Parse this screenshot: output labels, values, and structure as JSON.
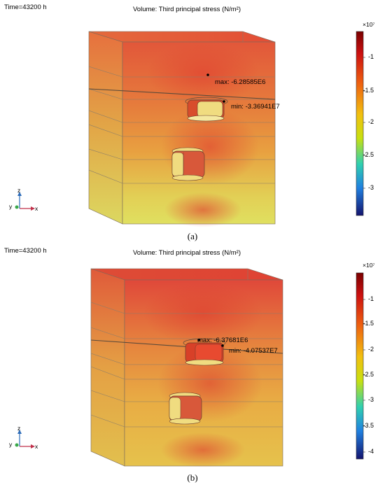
{
  "panel_a": {
    "time": "Time=43200 h",
    "title": "Volume: Third principal stress (N/m²)",
    "max_label": "max: -6.28585E6",
    "min_label": "min: -3.36941E7",
    "colorbar": {
      "exponent": "×10⁷",
      "ticks": [
        "-1",
        "-1.5",
        "-2",
        "-2.5",
        "-3"
      ]
    },
    "caption": "(a)"
  },
  "panel_b": {
    "time": "Time=43200 h",
    "title": "Volume: Third principal stress (N/m²)",
    "max_label": "max: -6.37681E6",
    "min_label": "min: -4.07537E7",
    "colorbar": {
      "exponent": "×10⁷",
      "ticks": [
        "-1",
        "-1.5",
        "-2",
        "-2.5",
        "-3",
        "-3.5",
        "-4"
      ]
    },
    "caption": "(b)"
  },
  "axes": {
    "z": "z",
    "y": "y",
    "x": "x"
  },
  "colors": {
    "high": "#8b0000",
    "mid": "#f2f200",
    "low": "#1a1a8c"
  }
}
